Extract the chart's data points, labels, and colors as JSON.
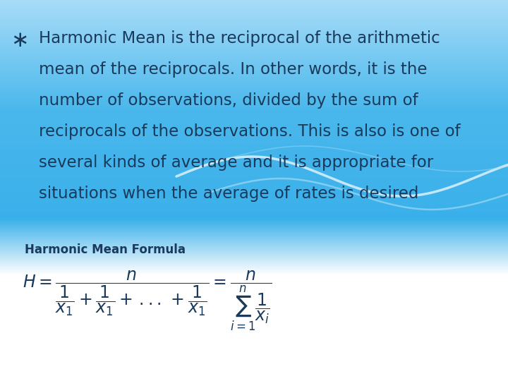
{
  "label_text": "Harmonic Mean Formula",
  "text_color": "#1a3a5c",
  "bullet_fontsize": 16.5,
  "label_fontsize": 12,
  "formula_fontsize": 17,
  "figsize": [
    7.2,
    5.4
  ],
  "dpi": 100,
  "bg_blue_top": "#a8dcf8",
  "bg_blue_mid": "#4ab8ec",
  "bg_blue_bottom": "#3ab0ea",
  "wave1_color": "#ffffff",
  "wave2_color": "#c5e9f8",
  "wave3_color": "#b0def5",
  "bullet_lines": [
    "Harmonic Mean is the reciprocal of the arithmetic",
    "mean of the reciprocals. In other words, it is the",
    "number of observations, divided by the sum of",
    "reciprocals of the observations. This is also is one of",
    "several kinds of average and it is appropriate for",
    "situations when the average of rates is desired"
  ]
}
